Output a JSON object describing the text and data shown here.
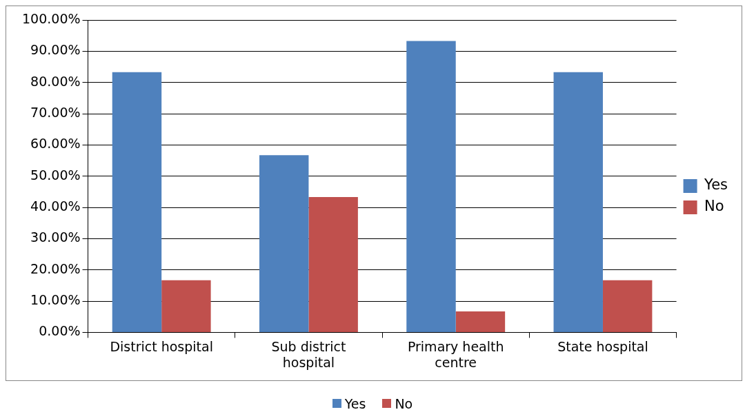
{
  "chart_data": {
    "type": "bar",
    "categories": [
      "District hospital",
      "Sub district hospital",
      "Primary health centre",
      "State hospital"
    ],
    "series": [
      {
        "name": "Yes",
        "color": "#4f81bd",
        "values": [
          83.3,
          56.7,
          93.3,
          83.3
        ]
      },
      {
        "name": "No",
        "color": "#c0504d",
        "values": [
          16.7,
          43.3,
          6.7,
          16.7
        ]
      }
    ],
    "ylim": [
      0,
      100
    ],
    "yticks": [
      {
        "value": 0,
        "label": "0.00%"
      },
      {
        "value": 10,
        "label": "10.00%"
      },
      {
        "value": 20,
        "label": "20.00%"
      },
      {
        "value": 30,
        "label": "30.00%"
      },
      {
        "value": 40,
        "label": "40.00%"
      },
      {
        "value": 50,
        "label": "50.00%"
      },
      {
        "value": 60,
        "label": "60.00%"
      },
      {
        "value": 70,
        "label": "70.00%"
      },
      {
        "value": 80,
        "label": "80.00%"
      },
      {
        "value": 90,
        "label": "90.00%"
      },
      {
        "value": 100,
        "label": "100.00%"
      }
    ],
    "grid": "y",
    "legend": "right"
  }
}
